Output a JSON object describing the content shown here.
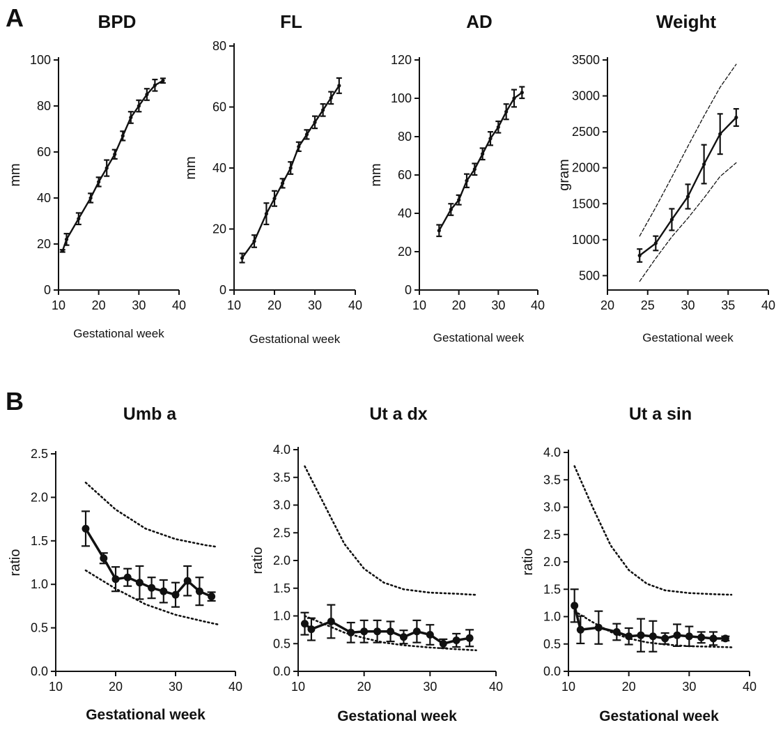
{
  "panels": {
    "a_label": "A",
    "b_label": "B"
  },
  "chart_data": [
    {
      "type": "line",
      "panel": "A",
      "title": "BPD",
      "xlabel": "Gestational week",
      "ylabel": "mm",
      "xlim": [
        10,
        40
      ],
      "ylim": [
        0,
        100
      ],
      "xticks": [
        10,
        20,
        30,
        40
      ],
      "yticks": [
        0,
        20,
        40,
        60,
        80,
        100
      ],
      "series": [
        {
          "x": [
            11,
            12,
            15,
            18,
            20,
            22,
            24,
            26,
            28,
            30,
            32,
            34,
            36
          ],
          "y": [
            17,
            22,
            31,
            40,
            47,
            53,
            59,
            67,
            75,
            80,
            85,
            89,
            91
          ],
          "err": [
            0.5,
            2.5,
            2.5,
            2,
            2,
            3.5,
            2,
            2,
            2.5,
            2.5,
            2.5,
            2.5,
            1
          ]
        }
      ]
    },
    {
      "type": "line",
      "panel": "A",
      "title": "FL",
      "xlabel": "Gestational week",
      "ylabel": "mm",
      "xlim": [
        10,
        40
      ],
      "ylim": [
        0,
        80
      ],
      "xticks": [
        10,
        20,
        30,
        40
      ],
      "yticks": [
        0,
        20,
        40,
        60,
        80
      ],
      "series": [
        {
          "x": [
            12,
            15,
            18,
            20,
            22,
            24,
            26,
            28,
            30,
            32,
            34,
            36
          ],
          "y": [
            10.5,
            16,
            25,
            30,
            35,
            40,
            47,
            51,
            55,
            59,
            63,
            67
          ],
          "err": [
            1.5,
            2,
            3.5,
            2.5,
            1.5,
            2,
            1.5,
            1.5,
            2,
            2,
            2,
            2.5
          ]
        }
      ]
    },
    {
      "type": "line",
      "panel": "A",
      "title": "AD",
      "xlabel": "Gestational week",
      "ylabel": "mm",
      "xlim": [
        10,
        40
      ],
      "ylim": [
        0,
        120
      ],
      "xticks": [
        10,
        20,
        30,
        40
      ],
      "yticks": [
        0,
        20,
        40,
        60,
        80,
        100,
        120
      ],
      "series": [
        {
          "x": [
            15,
            18,
            20,
            22,
            24,
            26,
            28,
            30,
            32,
            34,
            36
          ],
          "y": [
            31,
            42,
            47,
            57,
            63,
            71,
            79,
            85,
            93,
            100,
            103
          ],
          "err": [
            3,
            3,
            2.5,
            3.5,
            3,
            3,
            3.5,
            3,
            4,
            4.5,
            3
          ]
        }
      ]
    },
    {
      "type": "line",
      "panel": "A",
      "title": "Weight",
      "xlabel": "Gestational week",
      "ylabel": "gram",
      "xlim": [
        20,
        40
      ],
      "ylim": [
        300,
        3500
      ],
      "xticks": [
        20,
        25,
        30,
        35,
        40
      ],
      "yticks": [
        500,
        1000,
        1500,
        2000,
        2500,
        3000,
        3500
      ],
      "series": [
        {
          "x": [
            24,
            26,
            28,
            30,
            32,
            34,
            36
          ],
          "y": [
            780,
            950,
            1280,
            1600,
            2050,
            2470,
            2700
          ],
          "err": [
            90,
            100,
            150,
            170,
            270,
            280,
            120
          ]
        }
      ],
      "bounds": [
        {
          "x": [
            24,
            26,
            28,
            30,
            32,
            34,
            36
          ],
          "y": [
            1050,
            1450,
            1870,
            2300,
            2720,
            3120,
            3440
          ]
        },
        {
          "x": [
            24,
            26,
            28,
            30,
            32,
            34,
            36
          ],
          "y": [
            420,
            740,
            1040,
            1300,
            1580,
            1880,
            2070
          ]
        }
      ]
    },
    {
      "type": "line",
      "panel": "B",
      "title": "Umb a",
      "xlabel": "Gestational week",
      "ylabel": "ratio",
      "xlim": [
        10,
        40
      ],
      "ylim": [
        0,
        2.5
      ],
      "xticks": [
        10,
        20,
        30,
        40
      ],
      "yticks": [
        0.0,
        0.5,
        1.0,
        1.5,
        2.0,
        2.5
      ],
      "ytick_labels": [
        "0.0",
        "0.5",
        "1.0",
        "1.5",
        "2.0",
        "2.5"
      ],
      "series": [
        {
          "x": [
            15,
            18,
            20,
            22,
            24,
            26,
            28,
            30,
            32,
            34,
            36
          ],
          "y": [
            1.64,
            1.3,
            1.06,
            1.08,
            1.02,
            0.96,
            0.92,
            0.88,
            1.04,
            0.92,
            0.86
          ],
          "err": [
            0.2,
            0.06,
            0.14,
            0.1,
            0.19,
            0.12,
            0.13,
            0.14,
            0.17,
            0.16,
            0.05
          ]
        }
      ],
      "bounds": [
        {
          "x": [
            15,
            20,
            25,
            30,
            35,
            37
          ],
          "y": [
            2.17,
            1.86,
            1.64,
            1.52,
            1.45,
            1.43
          ]
        },
        {
          "x": [
            15,
            20,
            25,
            30,
            35,
            37
          ],
          "y": [
            1.16,
            0.95,
            0.77,
            0.65,
            0.57,
            0.54
          ]
        }
      ]
    },
    {
      "type": "line",
      "panel": "B",
      "title": "Ut a dx",
      "xlabel": "Gestational week",
      "ylabel": "ratio",
      "xlim": [
        10,
        40
      ],
      "ylim": [
        0,
        4.0
      ],
      "xticks": [
        10,
        20,
        30,
        40
      ],
      "yticks": [
        0.0,
        0.5,
        1.0,
        1.5,
        2.0,
        2.5,
        3.0,
        3.5,
        4.0
      ],
      "ytick_labels": [
        "0.0",
        "0.5",
        "1.0",
        "1.5",
        "2.0",
        "2.5",
        "3.0",
        "3.5",
        "4.0"
      ],
      "series": [
        {
          "x": [
            11,
            12,
            15,
            18,
            20,
            22,
            24,
            26,
            28,
            30,
            32,
            34,
            36
          ],
          "y": [
            0.86,
            0.76,
            0.9,
            0.7,
            0.72,
            0.72,
            0.72,
            0.62,
            0.72,
            0.66,
            0.5,
            0.56,
            0.6
          ],
          "err": [
            0.2,
            0.2,
            0.3,
            0.18,
            0.2,
            0.2,
            0.18,
            0.12,
            0.2,
            0.18,
            0.08,
            0.12,
            0.15
          ]
        }
      ],
      "bounds": [
        {
          "x": [
            11,
            14,
            17,
            20,
            23,
            26,
            30,
            34,
            37
          ],
          "y": [
            3.7,
            3.0,
            2.3,
            1.85,
            1.6,
            1.48,
            1.42,
            1.4,
            1.38
          ]
        },
        {
          "x": [
            11,
            14,
            17,
            20,
            23,
            26,
            30,
            34,
            37
          ],
          "y": [
            1.0,
            0.85,
            0.7,
            0.6,
            0.52,
            0.47,
            0.43,
            0.4,
            0.38
          ]
        }
      ]
    },
    {
      "type": "line",
      "panel": "B",
      "title": "Ut a sin",
      "xlabel": "Gestational week",
      "ylabel": "ratio",
      "xlim": [
        10,
        40
      ],
      "ylim": [
        0,
        4.0
      ],
      "xticks": [
        10,
        20,
        30,
        40
      ],
      "yticks": [
        0.0,
        0.5,
        1.0,
        1.5,
        2.0,
        2.5,
        3.0,
        3.5,
        4.0
      ],
      "ytick_labels": [
        "0.0",
        "0.5",
        "1.0",
        "1.5",
        "2.0",
        "2.5",
        "3.0",
        "3.5",
        "4.0"
      ],
      "series": [
        {
          "x": [
            11,
            12,
            15,
            18,
            20,
            22,
            24,
            26,
            28,
            30,
            32,
            34,
            36
          ],
          "y": [
            1.2,
            0.76,
            0.8,
            0.72,
            0.64,
            0.66,
            0.64,
            0.6,
            0.66,
            0.64,
            0.62,
            0.6,
            0.6
          ],
          "err": [
            0.3,
            0.25,
            0.3,
            0.15,
            0.15,
            0.3,
            0.28,
            0.1,
            0.2,
            0.18,
            0.1,
            0.12,
            0.04
          ]
        }
      ],
      "bounds": [
        {
          "x": [
            11,
            14,
            17,
            20,
            23,
            26,
            30,
            34,
            37
          ],
          "y": [
            3.75,
            3.0,
            2.3,
            1.85,
            1.6,
            1.48,
            1.43,
            1.41,
            1.4
          ]
        },
        {
          "x": [
            11,
            14,
            17,
            20,
            23,
            26,
            30,
            34,
            37
          ],
          "y": [
            1.1,
            0.9,
            0.72,
            0.6,
            0.53,
            0.49,
            0.46,
            0.45,
            0.44
          ]
        }
      ]
    }
  ]
}
